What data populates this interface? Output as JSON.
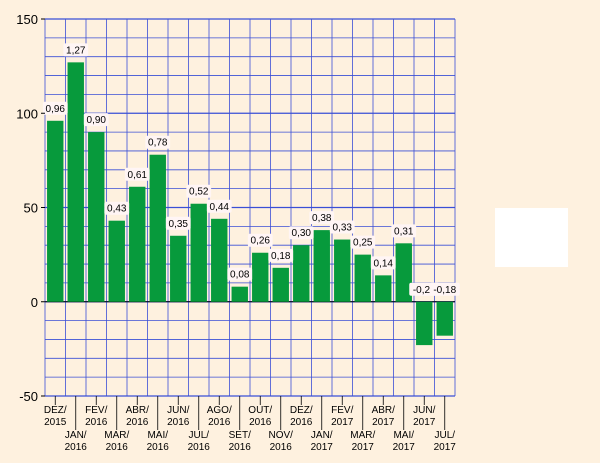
{
  "chart_data": {
    "type": "bar",
    "categories": [
      [
        "DEZ/",
        "2015"
      ],
      [
        "JAN/",
        "2016"
      ],
      [
        "FEV/",
        "2016"
      ],
      [
        "MAR/",
        "2016"
      ],
      [
        "ABR/",
        "2016"
      ],
      [
        "MAI/",
        "2016"
      ],
      [
        "JUN/",
        "2016"
      ],
      [
        "JUL/",
        "2016"
      ],
      [
        "AGO/",
        "2016"
      ],
      [
        "SET/",
        "2016"
      ],
      [
        "OUT/",
        "2016"
      ],
      [
        "NOV/",
        "2016"
      ],
      [
        "DEZ/",
        "2016"
      ],
      [
        "JAN/",
        "2017"
      ],
      [
        "FEV/",
        "2017"
      ],
      [
        "MAR/",
        "2017"
      ],
      [
        "ABR/",
        "2017"
      ],
      [
        "MAI/",
        "2017"
      ],
      [
        "JUN/",
        "2017"
      ],
      [
        "JUL/",
        "2017"
      ]
    ],
    "values": [
      96,
      127,
      90,
      43,
      61,
      78,
      35,
      52,
      44,
      8,
      26,
      18,
      30,
      38,
      33,
      25,
      14,
      31,
      -23,
      -18
    ],
    "data_labels": [
      "0,96",
      "1,27",
      "0,90",
      "0,43",
      "0,61",
      "0,78",
      "0,35",
      "0,52",
      "0,44",
      "0,08",
      "0,26",
      "0,18",
      "0,30",
      "0,38",
      "0,33",
      "0,25",
      "0,14",
      "0,31",
      "-0,23",
      "-0,18"
    ],
    "ylim": [
      -50,
      150
    ],
    "yticks": [
      -50,
      0,
      50,
      100,
      150
    ],
    "grid": true,
    "bar_color": "#079a3c",
    "grid_color": "#3a4fd6",
    "background_color": "#fef1df",
    "title": "",
    "xlabel": "",
    "ylabel": ""
  }
}
